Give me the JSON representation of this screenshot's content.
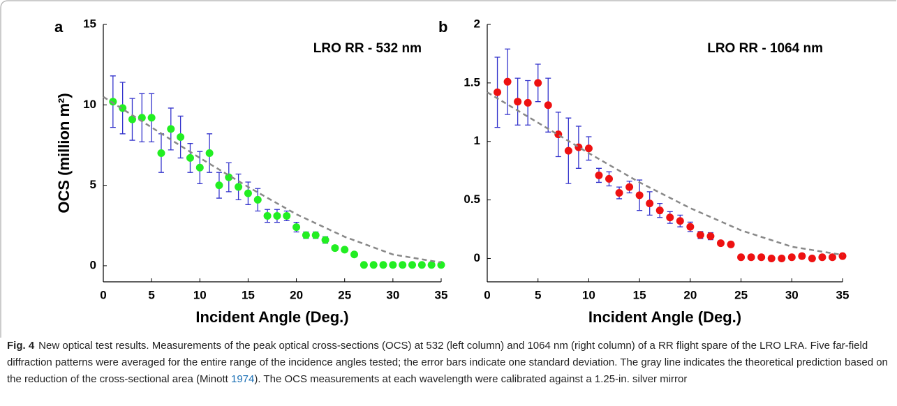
{
  "chart_data": [
    {
      "type": "scatter",
      "panel_label": "a",
      "annotation": "LRO RR - 532 nm",
      "x_label": "Incident Angle (Deg.)",
      "y_label": "OCS (million m²)",
      "xlim": [
        0,
        35
      ],
      "xticks": [
        0,
        5,
        10,
        15,
        20,
        25,
        30,
        35
      ],
      "ylim": [
        -1,
        15
      ],
      "yticks": [
        0,
        5,
        10,
        15
      ],
      "series": [
        {
          "type": "scatter",
          "color": "#22ee22",
          "error_color": "#3333cc",
          "x": [
            1,
            2,
            3,
            4,
            5,
            6,
            7,
            8,
            9,
            10,
            11,
            12,
            13,
            14,
            15,
            16,
            17,
            18,
            19,
            20,
            21,
            22,
            23,
            24,
            25,
            26,
            27,
            28,
            29,
            30,
            31,
            32,
            33,
            34,
            35
          ],
          "values": [
            10.2,
            9.8,
            9.1,
            9.2,
            9.2,
            7.0,
            8.5,
            8.0,
            6.7,
            6.1,
            7.0,
            5.0,
            5.5,
            4.9,
            4.5,
            4.1,
            3.1,
            3.1,
            3.1,
            2.4,
            1.9,
            1.9,
            1.6,
            1.1,
            1.0,
            0.7,
            0.05,
            0.05,
            0.05,
            0.05,
            0.05,
            0.05,
            0.05,
            0.05,
            0.05
          ],
          "errors": [
            1.6,
            1.6,
            1.3,
            1.5,
            1.5,
            1.2,
            1.3,
            1.3,
            0.9,
            1.0,
            1.2,
            0.8,
            0.9,
            0.8,
            0.7,
            0.7,
            0.4,
            0.4,
            0.3,
            0.3,
            0.2,
            0.2,
            0.2,
            0.15,
            0.1,
            0.1,
            0.05,
            0.05,
            0.05,
            0.05,
            0.05,
            0.05,
            0.05,
            0.05,
            0.05
          ]
        },
        {
          "type": "line",
          "color": "#888888",
          "dashed": true,
          "x": [
            0,
            5,
            10,
            15,
            20,
            25,
            30,
            35
          ],
          "values": [
            10.5,
            8.6,
            6.7,
            4.9,
            3.2,
            1.8,
            0.7,
            0.2
          ]
        }
      ]
    },
    {
      "type": "scatter",
      "panel_label": "b",
      "annotation": "LRO RR - 1064 nm",
      "x_label": "Incident Angle (Deg.)",
      "xlim": [
        0,
        35
      ],
      "xticks": [
        0,
        5,
        10,
        15,
        20,
        25,
        30,
        35
      ],
      "ylim": [
        -0.2,
        2
      ],
      "yticks": [
        0,
        0.5,
        1,
        1.5,
        2
      ],
      "series": [
        {
          "type": "scatter",
          "color": "#ee1111",
          "error_color": "#3333cc",
          "x": [
            1,
            2,
            3,
            4,
            5,
            6,
            7,
            8,
            9,
            10,
            11,
            12,
            13,
            14,
            15,
            16,
            17,
            18,
            19,
            20,
            21,
            22,
            23,
            24,
            25,
            26,
            27,
            28,
            29,
            30,
            31,
            32,
            33,
            34,
            35
          ],
          "values": [
            1.42,
            1.51,
            1.34,
            1.33,
            1.5,
            1.31,
            1.06,
            0.92,
            0.95,
            0.94,
            0.71,
            0.68,
            0.56,
            0.61,
            0.54,
            0.47,
            0.41,
            0.35,
            0.32,
            0.27,
            0.2,
            0.19,
            0.13,
            0.12,
            0.01,
            0.01,
            0.01,
            0.0,
            0.0,
            0.01,
            0.02,
            0.0,
            0.01,
            0.01,
            0.02
          ],
          "errors": [
            0.3,
            0.28,
            0.2,
            0.19,
            0.16,
            0.23,
            0.19,
            0.28,
            0.18,
            0.1,
            0.06,
            0.06,
            0.05,
            0.05,
            0.13,
            0.1,
            0.06,
            0.05,
            0.05,
            0.04,
            0.03,
            0.03,
            0.02,
            0.02,
            0.02,
            0.02,
            0.02,
            0.02,
            0.02,
            0.02,
            0.02,
            0.02,
            0.02,
            0.02,
            0.02
          ]
        },
        {
          "type": "line",
          "color": "#888888",
          "dashed": true,
          "x": [
            0,
            5,
            10,
            15,
            20,
            25,
            30,
            35
          ],
          "values": [
            1.42,
            1.16,
            0.9,
            0.65,
            0.43,
            0.24,
            0.1,
            0.03
          ]
        }
      ]
    }
  ],
  "caption": {
    "label": "Fig. 4",
    "text": "New optical test results. Measurements of the peak optical cross-sections (OCS) at 532 (left column) and 1064 nm (right column) of a RR flight spare of the LRO LRA. Five far-field diffraction patterns were averaged for the entire range of the incidence angles tested; the error bars indicate one standard deviation. The gray line indicates the theoretical prediction based on the reduction of the cross-sectional area (Minott",
    "citation": "1974",
    "text_end": "). The OCS measurements at each wavelength were calibrated against a 1.25-in. silver mirror"
  }
}
